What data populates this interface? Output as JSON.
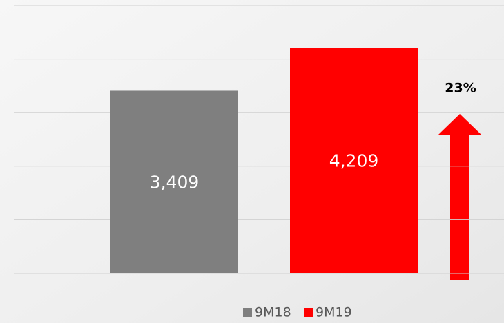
{
  "chart_data": {
    "type": "bar",
    "categories": [
      null
    ],
    "series": [
      {
        "name": "9M18",
        "color": "#7f7f7f",
        "values": [
          3409
        ],
        "value_labels": [
          "3,409"
        ]
      },
      {
        "name": "9M19",
        "color": "#ff0000",
        "values": [
          4209
        ],
        "value_labels": [
          "4,209"
        ]
      }
    ],
    "annotation": "23%",
    "ylim": [
      0,
      5000
    ],
    "yticks": [
      0,
      1000,
      2000,
      3000,
      4000,
      5000
    ],
    "grid": true
  }
}
